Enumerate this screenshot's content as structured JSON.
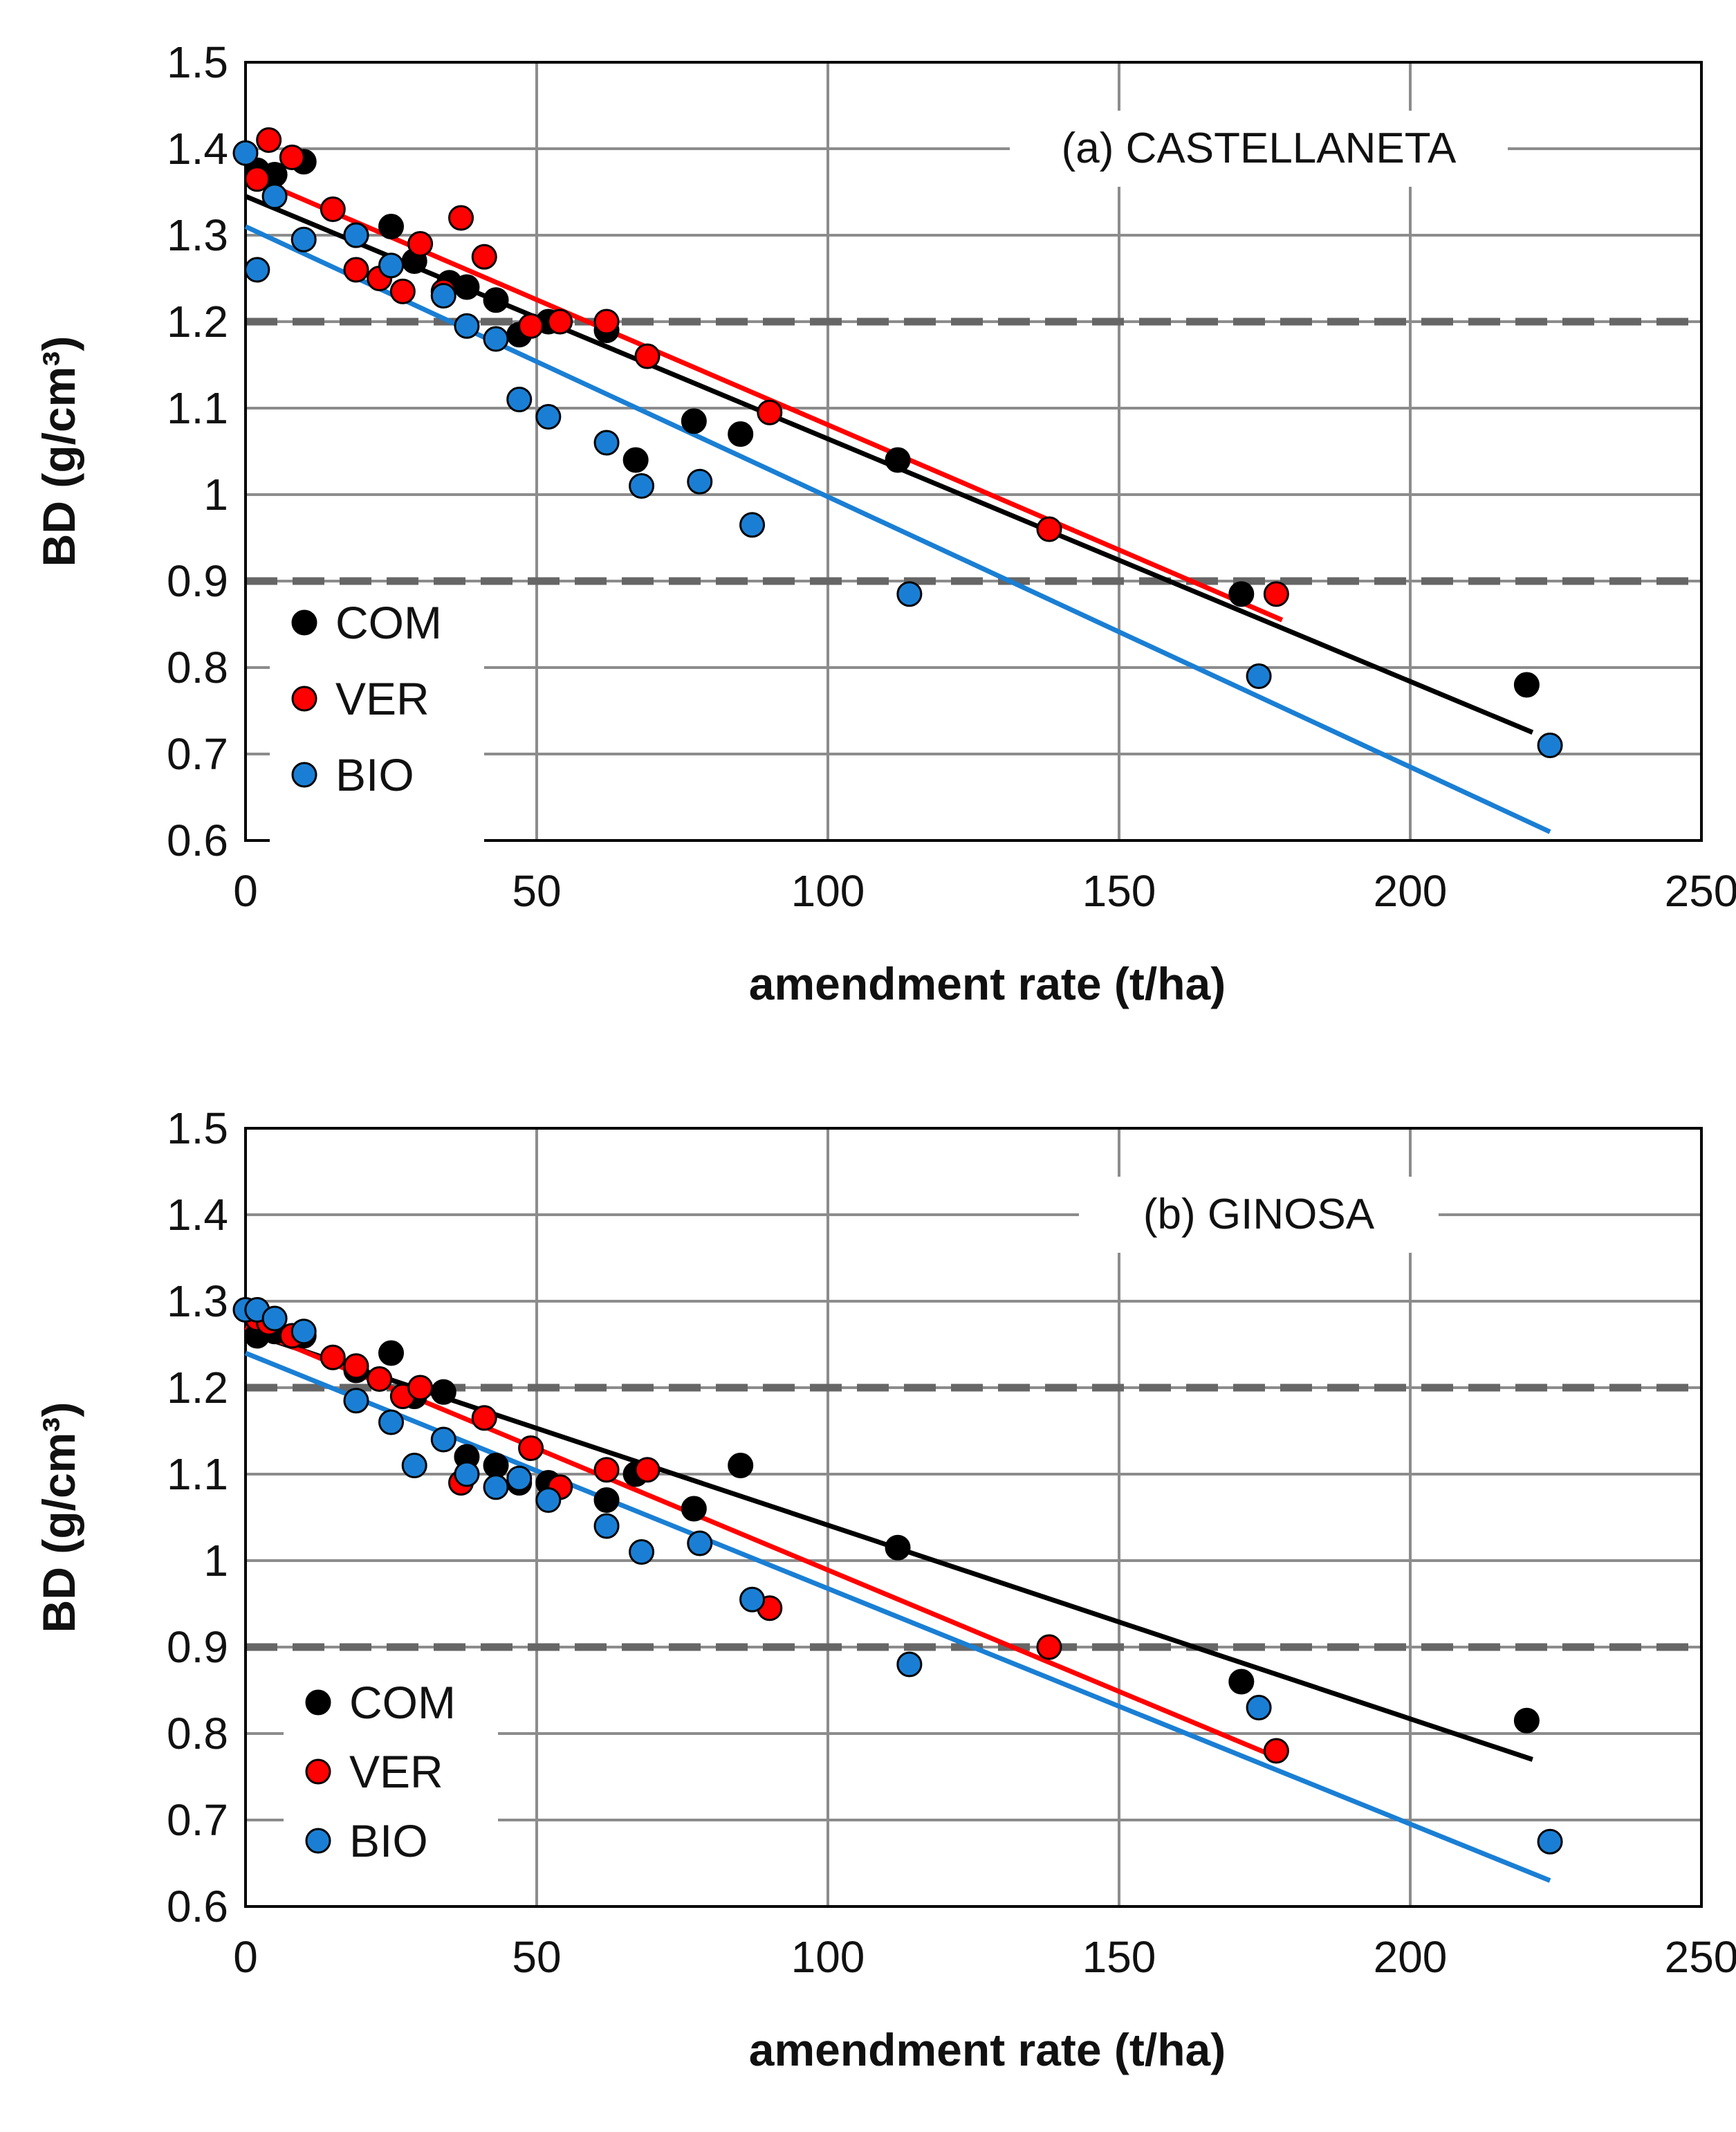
{
  "chart_data": [
    {
      "type": "scatter",
      "title": "(a) CASTELLANETA",
      "xlabel": "amendment rate (t/ha)",
      "ylabel": "BD (g/cm³)",
      "xlim": [
        0,
        250
      ],
      "ylim": [
        0.6,
        1.5
      ],
      "xticks": [
        "0",
        "50",
        "100",
        "150",
        "200",
        "250"
      ],
      "yticks": [
        "0.6",
        "0.7",
        "0.8",
        "0.9",
        "1",
        "1.1",
        "1.2",
        "1.3",
        "1.4",
        "1.5"
      ],
      "grid": true,
      "legend_position": "bottom-left",
      "reference_lines": [
        {
          "y": 1.2,
          "style": "dashed"
        },
        {
          "y": 0.9,
          "style": "dashed"
        }
      ],
      "series": [
        {
          "name": "COM",
          "color": "#000000",
          "points": [
            [
              2,
              1.375
            ],
            [
              5,
              1.37
            ],
            [
              10,
              1.385
            ],
            [
              19,
              1.3
            ],
            [
              25,
              1.31
            ],
            [
              29,
              1.27
            ],
            [
              35,
              1.245
            ],
            [
              38,
              1.24
            ],
            [
              43,
              1.225
            ],
            [
              47,
              1.185
            ],
            [
              52,
              1.2
            ],
            [
              62,
              1.19
            ],
            [
              67,
              1.04
            ],
            [
              77,
              1.085
            ],
            [
              85,
              1.07
            ],
            [
              112,
              1.04
            ],
            [
              171,
              0.885
            ],
            [
              220,
              0.78
            ]
          ],
          "trend": [
            [
              0,
              1.345
            ],
            [
              221,
              0.725
            ]
          ]
        },
        {
          "name": "VER",
          "color": "#ff0000",
          "points": [
            [
              2,
              1.365
            ],
            [
              4,
              1.41
            ],
            [
              8,
              1.39
            ],
            [
              15,
              1.33
            ],
            [
              19,
              1.26
            ],
            [
              23,
              1.25
            ],
            [
              27,
              1.235
            ],
            [
              30,
              1.29
            ],
            [
              34,
              1.235
            ],
            [
              37,
              1.32
            ],
            [
              41,
              1.275
            ],
            [
              49,
              1.195
            ],
            [
              54,
              1.2
            ],
            [
              62,
              1.2
            ],
            [
              69,
              1.16
            ],
            [
              90,
              1.095
            ],
            [
              138,
              0.96
            ],
            [
              177,
              0.885
            ]
          ],
          "trend": [
            [
              0,
              1.37
            ],
            [
              178,
              0.855
            ]
          ]
        },
        {
          "name": "BIO",
          "color": "#1a7fd4",
          "points": [
            [
              0,
              1.395
            ],
            [
              2,
              1.26
            ],
            [
              5,
              1.345
            ],
            [
              10,
              1.295
            ],
            [
              19,
              1.3
            ],
            [
              25,
              1.265
            ],
            [
              34,
              1.23
            ],
            [
              38,
              1.195
            ],
            [
              43,
              1.18
            ],
            [
              47,
              1.11
            ],
            [
              52,
              1.09
            ],
            [
              62,
              1.06
            ],
            [
              68,
              1.01
            ],
            [
              78,
              1.015
            ],
            [
              87,
              0.965
            ],
            [
              114,
              0.885
            ],
            [
              174,
              0.79
            ],
            [
              224,
              0.71
            ]
          ],
          "trend": [
            [
              0,
              1.31
            ],
            [
              224,
              0.61
            ]
          ]
        }
      ]
    },
    {
      "type": "scatter",
      "title": "(b) GINOSA",
      "xlabel": "amendment rate (t/ha)",
      "ylabel": "BD (g/cm³)",
      "xlim": [
        0,
        250
      ],
      "ylim": [
        0.6,
        1.5
      ],
      "xticks": [
        "0",
        "50",
        "100",
        "150",
        "200",
        "250"
      ],
      "yticks": [
        "0.6",
        "0.7",
        "0.8",
        "0.9",
        "1",
        "1.1",
        "1.2",
        "1.3",
        "1.4",
        "1.5"
      ],
      "grid": true,
      "legend_position": "bottom-left",
      "reference_lines": [
        {
          "y": 1.2,
          "style": "dashed"
        },
        {
          "y": 0.9,
          "style": "dashed"
        }
      ],
      "series": [
        {
          "name": "COM",
          "color": "#000000",
          "points": [
            [
              2,
              1.26
            ],
            [
              5,
              1.265
            ],
            [
              10,
              1.26
            ],
            [
              19,
              1.22
            ],
            [
              25,
              1.24
            ],
            [
              29,
              1.19
            ],
            [
              34,
              1.195
            ],
            [
              38,
              1.12
            ],
            [
              43,
              1.11
            ],
            [
              47,
              1.09
            ],
            [
              52,
              1.09
            ],
            [
              62,
              1.07
            ],
            [
              67,
              1.1
            ],
            [
              77,
              1.06
            ],
            [
              85,
              1.11
            ],
            [
              112,
              1.015
            ],
            [
              171,
              0.86
            ],
            [
              220,
              0.815
            ]
          ],
          "trend": [
            [
              0,
              1.265
            ],
            [
              221,
              0.77
            ]
          ]
        },
        {
          "name": "VER",
          "color": "#ff0000",
          "points": [
            [
              2,
              1.28
            ],
            [
              4,
              1.275
            ],
            [
              8,
              1.26
            ],
            [
              15,
              1.235
            ],
            [
              19,
              1.225
            ],
            [
              23,
              1.21
            ],
            [
              27,
              1.19
            ],
            [
              30,
              1.2
            ],
            [
              37,
              1.09
            ],
            [
              41,
              1.165
            ],
            [
              49,
              1.13
            ],
            [
              54,
              1.085
            ],
            [
              62,
              1.105
            ],
            [
              69,
              1.105
            ],
            [
              90,
              0.945
            ],
            [
              138,
              0.9
            ],
            [
              177,
              0.78
            ]
          ],
          "trend": [
            [
              0,
              1.27
            ],
            [
              178,
              0.77
            ]
          ]
        },
        {
          "name": "BIO",
          "color": "#1a7fd4",
          "points": [
            [
              0,
              1.29
            ],
            [
              2,
              1.29
            ],
            [
              5,
              1.28
            ],
            [
              10,
              1.265
            ],
            [
              19,
              1.185
            ],
            [
              25,
              1.16
            ],
            [
              29,
              1.11
            ],
            [
              34,
              1.14
            ],
            [
              38,
              1.1
            ],
            [
              43,
              1.085
            ],
            [
              47,
              1.095
            ],
            [
              52,
              1.07
            ],
            [
              62,
              1.04
            ],
            [
              68,
              1.01
            ],
            [
              78,
              1.02
            ],
            [
              87,
              0.955
            ],
            [
              114,
              0.88
            ],
            [
              174,
              0.83
            ],
            [
              224,
              0.675
            ]
          ],
          "trend": [
            [
              0,
              1.24
            ],
            [
              224,
              0.63
            ]
          ]
        }
      ]
    }
  ]
}
